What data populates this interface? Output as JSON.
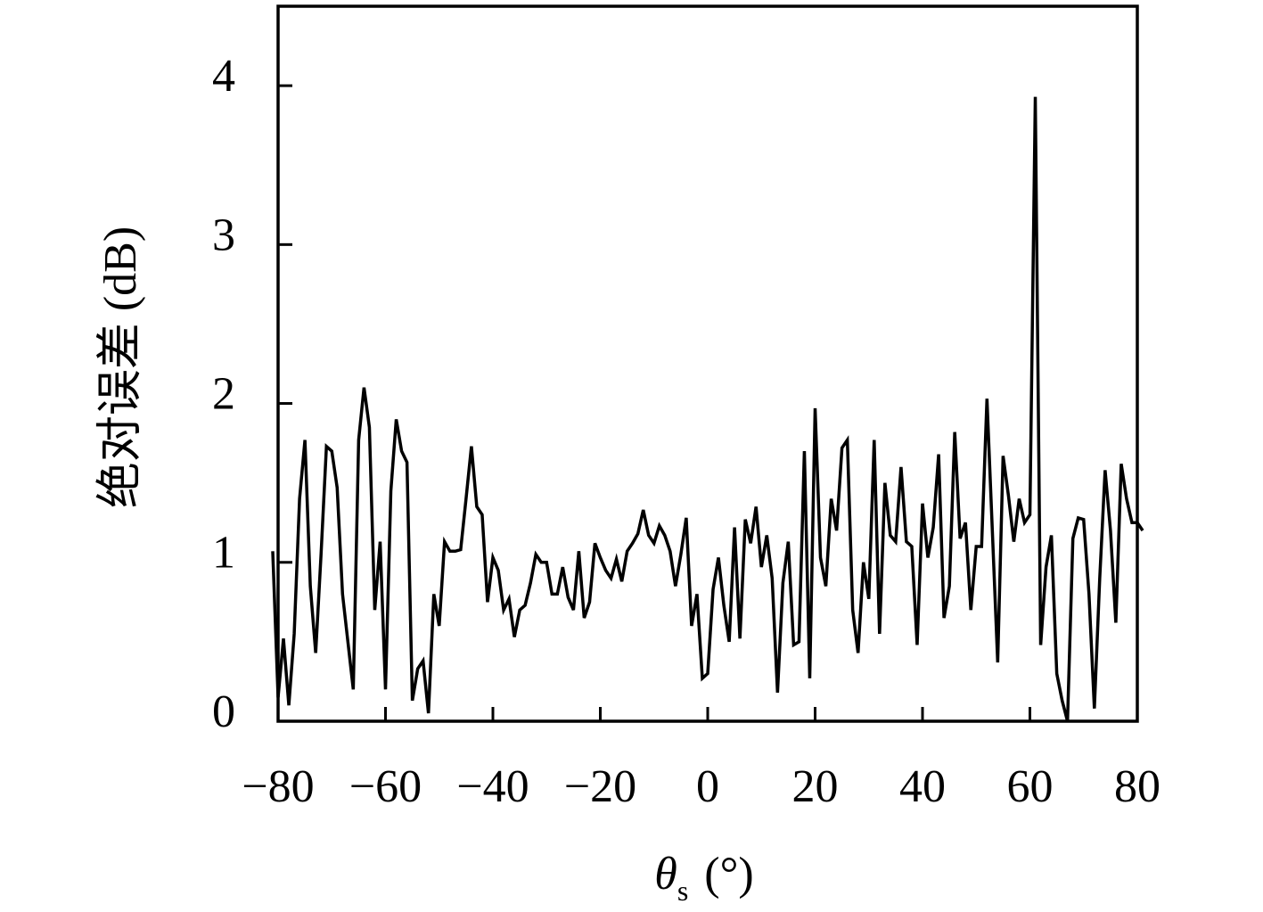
{
  "chart_data": {
    "type": "line",
    "xlabel": {
      "symbol": "θ",
      "subscript": "s",
      "unit": "(°)"
    },
    "ylabel": "绝对误差 (dB)",
    "color": "#000000",
    "xlim": [
      -80,
      80
    ],
    "ylim": [
      0,
      4.5
    ],
    "xticks": [
      {
        "value": -80,
        "label": "−80"
      },
      {
        "value": -60,
        "label": "−60"
      },
      {
        "value": -40,
        "label": "−40"
      },
      {
        "value": -20,
        "label": "−20"
      },
      0,
      20,
      40,
      60,
      80
    ],
    "yticks": [
      0,
      1,
      2,
      3,
      4
    ],
    "x": [
      -81,
      -80,
      -79,
      -78,
      -77,
      -76,
      -75,
      -74,
      -73,
      -72,
      -71,
      -70,
      -69,
      -68,
      -67,
      -66,
      -65,
      -64,
      -63,
      -62,
      -61,
      -60,
      -59,
      -58,
      -57,
      -56,
      -55,
      -54,
      -53,
      -52,
      -51,
      -50,
      -49,
      -48,
      -47,
      -46,
      -45,
      -44,
      -43,
      -42,
      -41,
      -40,
      -39,
      -38,
      -37,
      -36,
      -35,
      -34,
      -33,
      -32,
      -31,
      -30,
      -29,
      -28,
      -27,
      -26,
      -25,
      -24,
      -23,
      -22,
      -21,
      -20,
      -19,
      -18,
      -17,
      -16,
      -15,
      -14,
      -13,
      -12,
      -11,
      -10,
      -9,
      -8,
      -7,
      -6,
      -5,
      -4,
      -3,
      -2,
      -1,
      0,
      1,
      2,
      3,
      4,
      5,
      6,
      7,
      8,
      9,
      10,
      11,
      12,
      13,
      14,
      15,
      16,
      17,
      18,
      19,
      20,
      21,
      22,
      23,
      24,
      25,
      26,
      27,
      28,
      29,
      30,
      31,
      32,
      33,
      34,
      35,
      36,
      37,
      38,
      39,
      40,
      41,
      42,
      43,
      44,
      45,
      46,
      47,
      48,
      49,
      50,
      51,
      52,
      53,
      54,
      55,
      56,
      57,
      58,
      59,
      60,
      61,
      62,
      63,
      64,
      65,
      66,
      67,
      68,
      69,
      70,
      71,
      72,
      73,
      74,
      75,
      76,
      77,
      78,
      79,
      80,
      81
    ],
    "values": [
      1.07,
      0.15,
      0.52,
      0.1,
      0.55,
      1.4,
      1.77,
      0.85,
      0.43,
      1.05,
      1.73,
      1.7,
      1.47,
      0.8,
      0.5,
      0.2,
      1.77,
      2.1,
      1.85,
      0.7,
      1.13,
      0.2,
      1.45,
      1.9,
      1.7,
      1.63,
      0.13,
      0.33,
      0.38,
      0.05,
      0.8,
      0.6,
      1.13,
      1.07,
      1.07,
      1.08,
      1.4,
      1.73,
      1.35,
      1.3,
      0.75,
      1.03,
      0.95,
      0.7,
      0.77,
      0.53,
      0.7,
      0.73,
      0.87,
      1.05,
      1.0,
      1.0,
      0.8,
      0.8,
      0.97,
      0.78,
      0.7,
      1.07,
      0.65,
      0.75,
      1.12,
      1.03,
      0.95,
      0.9,
      1.02,
      0.88,
      1.07,
      1.12,
      1.18,
      1.33,
      1.17,
      1.12,
      1.23,
      1.17,
      1.07,
      0.85,
      1.05,
      1.28,
      0.6,
      0.8,
      0.27,
      0.3,
      0.83,
      1.03,
      0.73,
      0.5,
      1.22,
      0.52,
      1.27,
      1.12,
      1.35,
      0.97,
      1.17,
      0.9,
      0.18,
      0.87,
      1.13,
      0.48,
      0.5,
      1.7,
      0.27,
      1.97,
      1.03,
      0.85,
      1.4,
      1.2,
      1.72,
      1.77,
      0.7,
      0.43,
      1.0,
      0.77,
      1.77,
      0.55,
      1.5,
      1.17,
      1.13,
      1.6,
      1.13,
      1.1,
      0.48,
      1.37,
      1.03,
      1.22,
      1.68,
      0.65,
      0.85,
      1.82,
      1.15,
      1.25,
      0.7,
      1.1,
      1.1,
      2.03,
      1.2,
      0.37,
      1.67,
      1.42,
      1.13,
      1.4,
      1.25,
      1.3,
      3.93,
      0.48,
      0.97,
      1.17,
      0.3,
      0.13,
      0.0,
      1.15,
      1.28,
      1.27,
      0.8,
      0.08,
      0.9,
      1.58,
      1.2,
      0.62,
      1.62,
      1.4,
      1.25,
      1.25,
      1.2
    ]
  }
}
